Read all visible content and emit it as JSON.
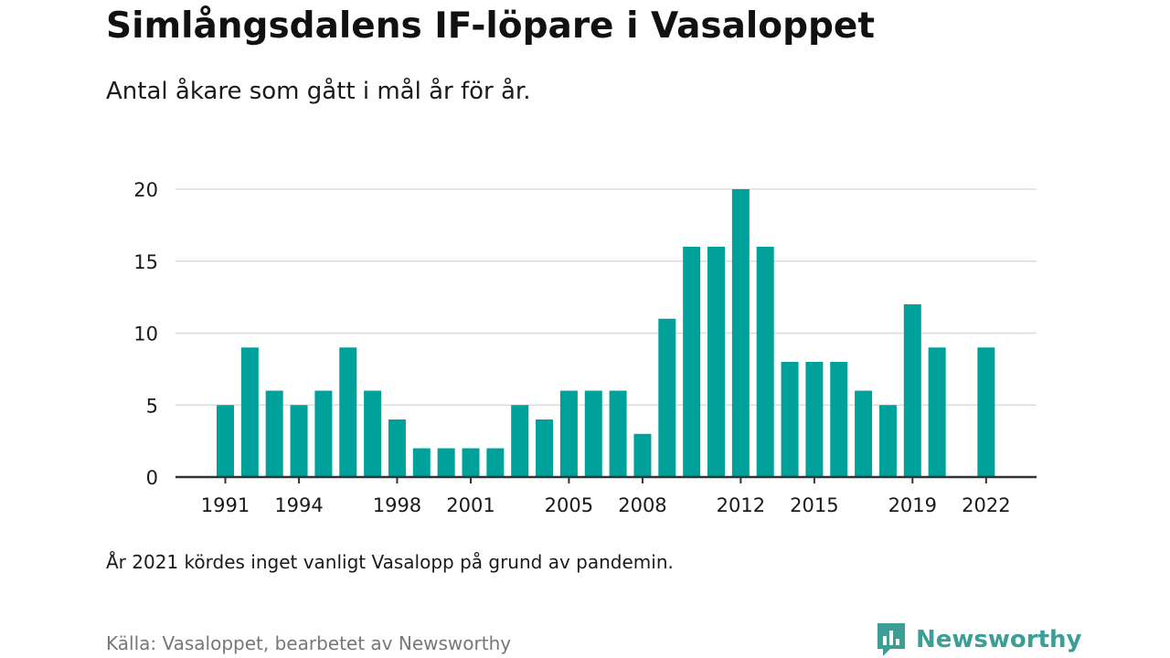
{
  "title": "Simlångsdalens IF-löpare i Vasaloppet",
  "subtitle": "Antal åkare som gått i mål år för år.",
  "note": "År 2021 kördes inget vanligt Vasalopp på grund av pandemin.",
  "source": "Källa: Vasaloppet, bearbetet av Newsworthy",
  "brand": {
    "name": "Newsworthy",
    "icon": "bar-chart-logo-icon",
    "color": "#3d9e96"
  },
  "colors": {
    "bar": "#00a19a",
    "grid": "#dddddd",
    "axis": "#333333",
    "text": "#1a1a1a"
  },
  "chart_data": {
    "type": "bar",
    "x": [
      1991,
      1992,
      1993,
      1994,
      1995,
      1996,
      1997,
      1998,
      1999,
      2000,
      2001,
      2002,
      2003,
      2004,
      2005,
      2006,
      2007,
      2008,
      2009,
      2010,
      2011,
      2012,
      2013,
      2014,
      2015,
      2016,
      2017,
      2018,
      2019,
      2020,
      2021,
      2022
    ],
    "values": [
      5,
      9,
      6,
      5,
      6,
      9,
      6,
      4,
      2,
      2,
      2,
      2,
      5,
      4,
      6,
      6,
      6,
      3,
      11,
      16,
      16,
      20,
      16,
      8,
      8,
      8,
      6,
      5,
      12,
      9,
      null,
      9
    ],
    "xticks": [
      1991,
      1994,
      1998,
      2001,
      2005,
      2008,
      2012,
      2015,
      2019,
      2022
    ],
    "yticks": [
      0,
      5,
      10,
      15,
      20
    ],
    "ylim": [
      0,
      20
    ],
    "xlabel": "",
    "ylabel": "",
    "grid": true
  }
}
